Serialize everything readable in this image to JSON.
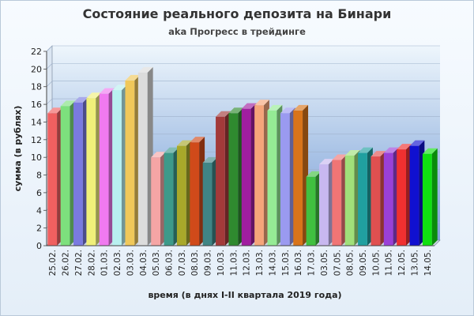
{
  "chart_data": {
    "type": "bar",
    "title": "Состояние реального депозита на Бинари",
    "subtitle": "aka Прогресс в трейдинге",
    "xlabel": "время (в днях I-II квартала 2019 года)",
    "ylabel": "сумма (в рублях)",
    "ylim": [
      0,
      22
    ],
    "yticks": [
      0,
      2,
      4,
      6,
      8,
      10,
      12,
      14,
      16,
      18,
      20,
      22
    ],
    "grid": true,
    "categories": [
      "25.02.",
      "26.02.",
      "27.02.",
      "28.02.",
      "01.03.",
      "02.03.",
      "03.03.",
      "04.03.",
      "05.03.",
      "06.03.",
      "07.03.",
      "08.03.",
      "09.03.",
      "10.03.",
      "11.03.",
      "12.03.",
      "13.03.",
      "14.03.",
      "15.03.",
      "16.03.",
      "17.03.",
      "03.05.",
      "07.05.",
      "08.05.",
      "09.05.",
      "10.05.",
      "11.05.",
      "12.05.",
      "13.05.",
      "14.05."
    ],
    "values": [
      15.0,
      15.8,
      16.2,
      16.7,
      17.2,
      17.6,
      18.7,
      19.6,
      10.0,
      10.5,
      11.3,
      11.7,
      9.4,
      14.6,
      15.0,
      15.5,
      15.9,
      15.3,
      15.0,
      15.3,
      7.8,
      9.2,
      9.7,
      10.2,
      10.5,
      10.1,
      10.5,
      10.9,
      11.3,
      10.4
    ],
    "colors": [
      "#f06060",
      "#7de07d",
      "#7a7ae0",
      "#f0f07a",
      "#f07af0",
      "#b8f0f0",
      "#f0c85a",
      "#dcdcdc",
      "#f5a5a5",
      "#3d9a8a",
      "#a8a82a",
      "#d04a1a",
      "#3f8585",
      "#a33a3a",
      "#2f8a2f",
      "#a01ea0",
      "#f5a57a",
      "#95eb95",
      "#9a9af0",
      "#d8741a",
      "#40c040",
      "#c8b8f0",
      "#f07575",
      "#a0e07a",
      "#20a0a0",
      "#e05050",
      "#9a40d8",
      "#f03030",
      "#1010d0",
      "#10e010"
    ]
  }
}
